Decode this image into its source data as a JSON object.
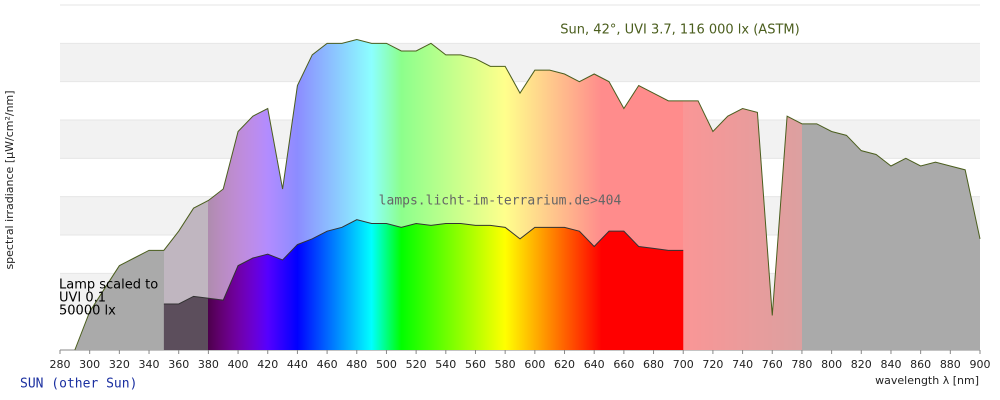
{
  "chart_data": {
    "type": "area",
    "title": "Sun, 42°, UVI 3.7, 116 000 lx (ASTM)",
    "watermark": "lamps.licht-im-terrarium.de>404",
    "x_label": "wavelength λ [nm]",
    "y_label": "spectral irradiance [µW/cm²/nm]",
    "footer_link": "SUN (other Sun)",
    "xlim": [
      280,
      900
    ],
    "xticks": [
      280,
      300,
      320,
      340,
      360,
      380,
      400,
      420,
      440,
      460,
      480,
      500,
      520,
      540,
      560,
      580,
      600,
      620,
      640,
      660,
      680,
      700,
      720,
      740,
      760,
      780,
      800,
      820,
      840,
      860,
      880,
      900
    ],
    "ylim": [
      0,
      9
    ],
    "yticks": [
      0,
      1,
      2,
      3,
      4,
      5,
      6,
      7,
      8,
      9
    ],
    "show_ytick_labels": false,
    "grid": true,
    "series": [
      {
        "color": "#4b5e1e",
        "fill": "pale-spectrum",
        "x": [
          290,
          300,
          310,
          320,
          330,
          340,
          350,
          360,
          370,
          380,
          390,
          400,
          410,
          420,
          430,
          440,
          450,
          460,
          470,
          480,
          490,
          500,
          510,
          520,
          530,
          540,
          550,
          560,
          570,
          580,
          590,
          600,
          610,
          620,
          630,
          640,
          650,
          660,
          670,
          680,
          690,
          700,
          710,
          720,
          730,
          740,
          750,
          760,
          770,
          780,
          790,
          800,
          810,
          820,
          830,
          840,
          850,
          860,
          870,
          880,
          890,
          900
        ],
        "values": [
          0,
          1.0,
          1.6,
          2.2,
          2.4,
          2.6,
          2.6,
          3.1,
          3.7,
          3.9,
          4.2,
          5.7,
          6.1,
          6.3,
          4.2,
          6.9,
          7.7,
          8.0,
          8.0,
          8.1,
          8.0,
          8.0,
          7.8,
          7.8,
          8.0,
          7.7,
          7.7,
          7.6,
          7.4,
          7.4,
          6.7,
          7.3,
          7.3,
          7.2,
          7.0,
          7.2,
          7.0,
          6.3,
          6.9,
          6.7,
          6.5,
          6.5,
          6.5,
          5.7,
          6.1,
          6.3,
          6.2,
          0.9,
          6.1,
          5.9,
          5.9,
          5.7,
          5.6,
          5.2,
          5.1,
          4.8,
          5.0,
          4.8,
          4.9,
          4.8,
          4.7,
          2.9
        ]
      },
      {
        "color": "#333333",
        "fill": "spectrum",
        "label": [
          "Lamp scaled to",
          "UVI 0.1",
          "50000 lx"
        ],
        "x": [
          350,
          360,
          370,
          380,
          390,
          400,
          410,
          420,
          430,
          440,
          450,
          460,
          470,
          480,
          490,
          500,
          510,
          520,
          530,
          540,
          550,
          560,
          570,
          580,
          590,
          600,
          610,
          620,
          630,
          640,
          650,
          660,
          670,
          680,
          690,
          700
        ],
        "values": [
          1.2,
          1.2,
          1.4,
          1.35,
          1.3,
          2.2,
          2.4,
          2.5,
          2.35,
          2.75,
          2.9,
          3.1,
          3.2,
          3.4,
          3.3,
          3.3,
          3.2,
          3.3,
          3.25,
          3.3,
          3.3,
          3.25,
          3.25,
          3.2,
          2.9,
          3.2,
          3.2,
          3.2,
          3.1,
          2.7,
          3.1,
          3.1,
          2.7,
          2.65,
          2.6,
          2.6
        ]
      }
    ]
  }
}
